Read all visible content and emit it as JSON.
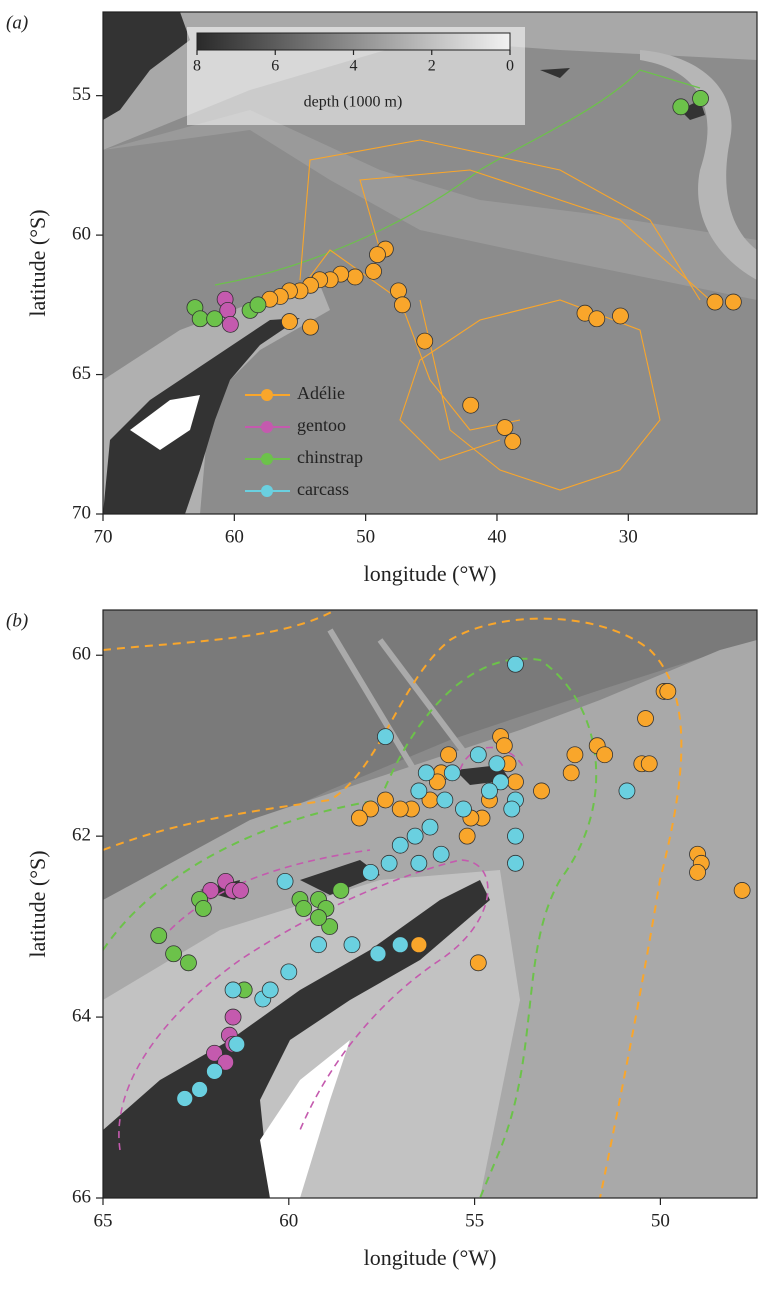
{
  "chart_data": [
    {
      "type": "scatter",
      "panel_label": "(a)",
      "x_label": "longitude (°W)",
      "y_label": "latitude (°S)",
      "xlim": [
        70,
        20.2
      ],
      "ylim": [
        70,
        52
      ],
      "xticks": [
        70,
        60,
        50,
        40,
        30
      ],
      "yticks": [
        55,
        60,
        65,
        70
      ],
      "colorbar": {
        "label": "depth (1000 m)",
        "lim": [
          8,
          0
        ],
        "ticks": [
          8,
          6,
          4,
          2,
          0
        ]
      },
      "series": [
        {
          "name": "Adélie",
          "color": "#f9a62b",
          "x": [
            48.5,
            49.1,
            49.4,
            50.8,
            51.9,
            52.7,
            53.5,
            54.2,
            55.0,
            55.8,
            56.5,
            57.3,
            47.5,
            47.2,
            45.5,
            42.0,
            39.4,
            38.8,
            33.3,
            32.4,
            30.6,
            23.4,
            22.0,
            54.2,
            55.8
          ],
          "y": [
            60.5,
            60.7,
            61.3,
            61.5,
            61.4,
            61.6,
            61.6,
            61.8,
            62.0,
            62.0,
            62.2,
            62.3,
            62.0,
            62.5,
            63.8,
            66.1,
            66.9,
            67.4,
            62.8,
            63.0,
            62.9,
            62.4,
            62.4,
            63.3,
            63.1
          ]
        },
        {
          "name": "gentoo",
          "color": "#c45aae",
          "x": [
            60.7,
            60.5,
            60.3
          ],
          "y": [
            62.3,
            62.7,
            63.2
          ]
        },
        {
          "name": "chinstrap",
          "color": "#6cc24a",
          "x": [
            63.0,
            62.6,
            61.5,
            58.8,
            58.2,
            26.0,
            24.5
          ],
          "y": [
            62.6,
            63.0,
            63.0,
            62.7,
            62.5,
            55.4,
            55.1
          ]
        },
        {
          "name": "carcass",
          "color": "#6ad0e0",
          "x": [],
          "y": []
        }
      ]
    },
    {
      "type": "scatter",
      "panel_label": "(b)",
      "x_label": "longitude (°W)",
      "y_label": "latitude (°S)",
      "xlim": [
        65,
        47.4
      ],
      "ylim": [
        66,
        59.5
      ],
      "xticks": [
        65,
        60,
        55,
        50
      ],
      "yticks": [
        60,
        62,
        64,
        66
      ],
      "series": [
        {
          "color": "#f9a62b",
          "x": [
            49.9,
            49.8,
            50.4,
            50.5,
            50.3,
            51.7,
            51.5,
            52.4,
            52.3,
            53.2,
            49.0,
            48.9,
            49.0,
            47.8,
            53.9,
            54.1,
            54.3,
            54.2,
            54.6,
            54.8,
            55.1,
            55.2,
            55.9,
            56.0,
            55.7,
            56.2,
            56.7,
            57.0,
            57.4,
            57.8,
            58.1,
            56.5,
            54.9
          ],
          "y": [
            60.4,
            60.4,
            60.7,
            61.2,
            61.2,
            61.0,
            61.1,
            61.3,
            61.1,
            61.5,
            62.2,
            62.3,
            62.4,
            62.6,
            61.4,
            61.2,
            60.9,
            61.0,
            61.6,
            61.8,
            61.8,
            62.0,
            61.3,
            61.4,
            61.1,
            61.6,
            61.7,
            61.7,
            61.6,
            61.7,
            61.8,
            63.2,
            63.4
          ]
        },
        {
          "color": "#c45aae",
          "x": [
            62.1,
            61.7,
            61.5,
            61.3,
            61.5,
            61.6,
            61.5,
            62.0,
            61.7
          ],
          "y": [
            62.6,
            62.5,
            62.6,
            62.6,
            64.0,
            64.2,
            64.3,
            64.4,
            64.5
          ]
        },
        {
          "color": "#6cc24a",
          "x": [
            63.5,
            63.1,
            62.7,
            62.4,
            62.3,
            61.2,
            59.7,
            59.6,
            59.2,
            59.0,
            58.6,
            58.9,
            59.2
          ],
          "y": [
            63.1,
            63.3,
            63.4,
            62.7,
            62.8,
            63.7,
            62.7,
            62.8,
            62.7,
            62.8,
            62.6,
            63.0,
            62.9
          ]
        },
        {
          "color": "#6ad0e0",
          "x": [
            53.9,
            57.4,
            54.9,
            55.6,
            56.5,
            56.3,
            55.8,
            55.3,
            54.4,
            54.3,
            53.9,
            54.0,
            54.6,
            56.2,
            56.6,
            57.0,
            57.3,
            57.8,
            56.5,
            55.9,
            57.0,
            57.6,
            58.3,
            59.2,
            60.0,
            60.7,
            60.5,
            61.5,
            60.1,
            53.9,
            53.9,
            50.9,
            61.4,
            62.0,
            62.4,
            62.8
          ],
          "y": [
            60.1,
            60.9,
            61.1,
            61.3,
            61.5,
            61.3,
            61.6,
            61.7,
            61.2,
            61.4,
            61.6,
            61.7,
            61.5,
            61.9,
            62.0,
            62.1,
            62.3,
            62.4,
            62.3,
            62.2,
            63.2,
            63.3,
            63.2,
            63.2,
            63.5,
            63.8,
            63.7,
            63.7,
            62.5,
            62.0,
            62.3,
            61.5,
            64.3,
            64.6,
            64.8,
            64.9
          ]
        }
      ]
    }
  ]
}
